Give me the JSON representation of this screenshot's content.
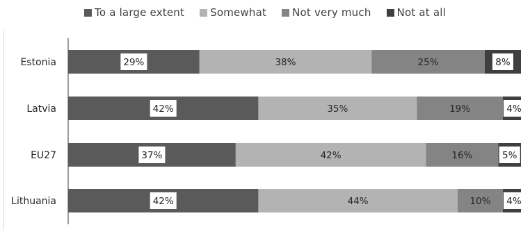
{
  "chart_data": {
    "type": "bar",
    "orientation": "horizontal",
    "stacked": true,
    "title": "",
    "xlabel": "",
    "ylabel": "",
    "xlim": [
      0,
      100
    ],
    "grid": false,
    "legend_position": "top",
    "categories": [
      "Estonia",
      "Latvia",
      "EU27",
      "Lithuania"
    ],
    "series": [
      {
        "name": "To a large extent",
        "color": "#5a5a5a",
        "values": [
          29,
          42,
          37,
          42
        ],
        "labels": [
          "29%",
          "42%",
          "37%",
          "42%"
        ],
        "boxed": [
          true,
          true,
          true,
          true
        ]
      },
      {
        "name": "Somewhat",
        "color": "#b3b3b3",
        "values": [
          38,
          35,
          42,
          44
        ],
        "labels": [
          "38%",
          "35%",
          "42%",
          "44%"
        ],
        "boxed": [
          false,
          false,
          false,
          false
        ]
      },
      {
        "name": "Not very much",
        "color": "#848484",
        "values": [
          25,
          19,
          16,
          10
        ],
        "labels": [
          "25%",
          "19%",
          "16%",
          "10%"
        ],
        "boxed": [
          false,
          false,
          false,
          false
        ]
      },
      {
        "name": "Not at all",
        "color": "#3f3f3f",
        "values": [
          8,
          4,
          5,
          4
        ],
        "labels": [
          "8%",
          "4%",
          "5%",
          "4%"
        ],
        "boxed": [
          true,
          true,
          true,
          true
        ]
      }
    ]
  }
}
